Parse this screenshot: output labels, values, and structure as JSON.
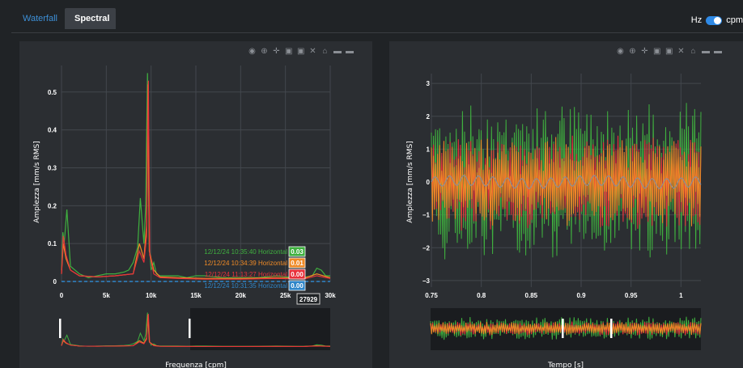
{
  "tabs": [
    {
      "label": "Waterfall",
      "active": false
    },
    {
      "label": "Spectral",
      "active": true
    }
  ],
  "unit_toggle": {
    "left_label": "Hz",
    "right_label": "cpm",
    "selected": "cpm"
  },
  "colors": {
    "green": "#3fb03f",
    "orange": "#ef8a26",
    "red": "#e8313b",
    "blue": "#2f86c9",
    "background": "#202326",
    "panel": "#2b2e32"
  },
  "modebar_icons": [
    "camera-icon",
    "zoom-icon",
    "pan-icon",
    "zoom-in-icon",
    "zoom-out-icon",
    "autoscale-icon",
    "home-icon",
    "spike-lines-icon",
    "compare-icon"
  ],
  "spectrum": {
    "ylabel": "Amplezza [mm/s RMS]",
    "xlabel": "Frequenza [cpm]",
    "hover_x": "27929",
    "chart_data": {
      "type": "line",
      "x_range": [
        0,
        30000
      ],
      "y_range": [
        0,
        0.57
      ],
      "x_ticks": [
        0,
        5000,
        10000,
        15000,
        20000,
        25000,
        30000
      ],
      "x_tick_labels": [
        "0",
        "5k",
        "10k",
        "15k",
        "20k",
        "25k",
        "30k"
      ],
      "y_ticks": [
        0,
        0.1,
        0.2,
        0.3,
        0.4,
        0.5
      ],
      "y_tick_labels": [
        "0",
        "0.1",
        "0.2",
        "0.3",
        "0.4",
        "0.5"
      ],
      "grid": true,
      "series": [
        {
          "name": "12/12/24 10:35:40 Horizontal",
          "color": "#3fb03f",
          "hover_value": "0.03",
          "x": [
            0,
            150,
            300,
            600,
            1000,
            2000,
            3000,
            4000,
            5000,
            6000,
            7000,
            7500,
            8000,
            8500,
            8800,
            9200,
            9400,
            9600,
            9800,
            10000,
            10300,
            10600,
            11000,
            12000,
            13000,
            14000,
            15000,
            16000,
            18000,
            20000,
            22000,
            24000,
            26000,
            27000,
            28000,
            28500,
            29000,
            29500,
            30000
          ],
          "y": [
            0.03,
            0.13,
            0.1,
            0.19,
            0.04,
            0.02,
            0.01,
            0.015,
            0.02,
            0.02,
            0.025,
            0.03,
            0.05,
            0.09,
            0.22,
            0.1,
            0.2,
            0.55,
            0.1,
            0.03,
            0.05,
            0.02,
            0.015,
            0.015,
            0.015,
            0.01,
            0.015,
            0.015,
            0.01,
            0.01,
            0.01,
            0.015,
            0.01,
            0.01,
            0.015,
            0.035,
            0.03,
            0.015,
            0.015
          ]
        },
        {
          "name": "12/12/24 10:34:39 Horizontal",
          "color": "#ef8a26",
          "hover_value": "0.01",
          "x": [
            0,
            200,
            500,
            1000,
            2000,
            4000,
            6000,
            8000,
            8700,
            9200,
            9500,
            9650,
            9800,
            10300,
            11000,
            13000,
            16000,
            20000,
            24000,
            27000,
            28500,
            30000
          ],
          "y": [
            0.02,
            0.1,
            0.06,
            0.03,
            0.015,
            0.012,
            0.015,
            0.02,
            0.1,
            0.06,
            0.15,
            0.52,
            0.08,
            0.03,
            0.012,
            0.01,
            0.008,
            0.008,
            0.01,
            0.008,
            0.02,
            0.01
          ]
        },
        {
          "name": "12/12/24 11:13:27 Horizontal",
          "color": "#e8313b",
          "hover_value": "0.00",
          "x": [
            0,
            200,
            500,
            1000,
            2000,
            4000,
            6000,
            8000,
            8700,
            9200,
            9500,
            9700,
            9850,
            10300,
            11000,
            13000,
            16000,
            20000,
            24000,
            27000,
            28500,
            30000
          ],
          "y": [
            0.02,
            0.12,
            0.07,
            0.03,
            0.015,
            0.012,
            0.015,
            0.02,
            0.08,
            0.05,
            0.12,
            0.53,
            0.07,
            0.02,
            0.01,
            0.008,
            0.006,
            0.006,
            0.008,
            0.006,
            0.015,
            0.008
          ]
        },
        {
          "name": "12/12/24 10:31:35 Horizontal",
          "color": "#2f86c9",
          "hover_value": "0.00",
          "x": [
            0,
            5000,
            10000,
            15000,
            20000,
            25000,
            30000
          ],
          "y": [
            0,
            0,
            0,
            0,
            0,
            0,
            0
          ]
        }
      ]
    }
  },
  "waveform": {
    "ylabel": "Amplezza [mm/s RMS]",
    "xlabel": "Tempo [s]",
    "chart_data": {
      "type": "line",
      "x_range": [
        0.75,
        1.02
      ],
      "y_range": [
        -3.2,
        3.3
      ],
      "x_ticks": [
        0.75,
        0.8,
        0.85,
        0.9,
        0.95,
        1
      ],
      "x_tick_labels": [
        "0.75",
        "0.8",
        "0.85",
        "0.9",
        "0.95",
        "1"
      ],
      "y_ticks": [
        -3,
        -2,
        -1,
        0,
        1,
        2,
        3
      ],
      "y_tick_labels": [
        "−3",
        "−2",
        "−1",
        "0",
        "1",
        "2",
        "3"
      ],
      "grid": true,
      "series": [
        {
          "name": "green",
          "color": "#3fb03f",
          "amplitude": 2.3
        },
        {
          "name": "red",
          "color": "#e8313b",
          "amplitude": 1.3
        },
        {
          "name": "orange",
          "color": "#ef8a26",
          "amplitude": 1.2
        },
        {
          "name": "gray",
          "color": "#8d8d95",
          "amplitude": 0.15
        }
      ]
    }
  }
}
